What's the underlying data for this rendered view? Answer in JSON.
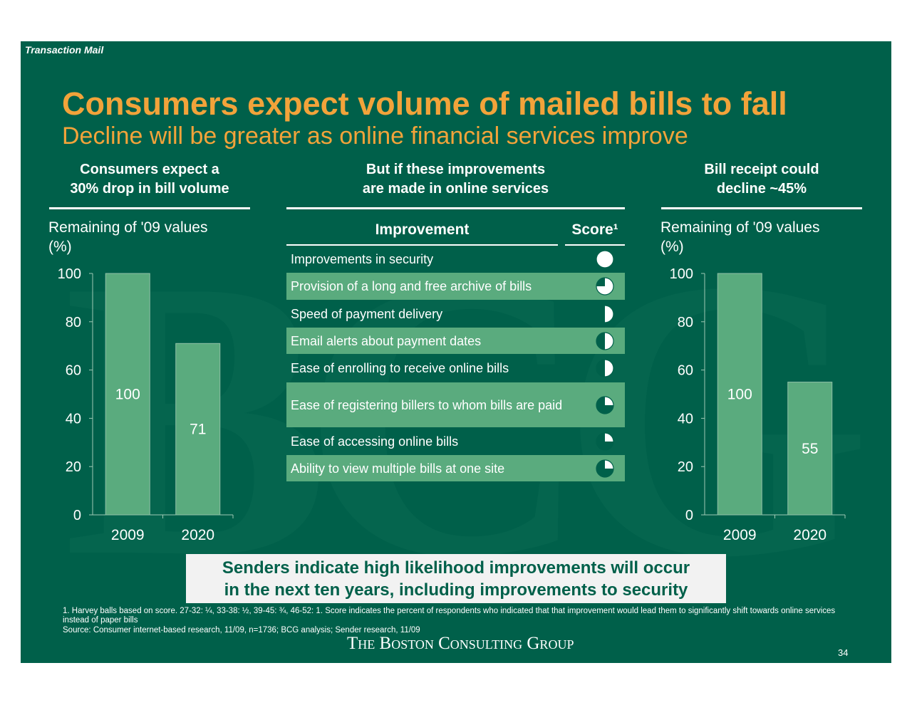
{
  "header": {
    "section_tag": "Transaction Mail",
    "title": "Consumers expect volume of mailed bills to fall",
    "subtitle": "Decline will be greater as online financial services improve"
  },
  "left_panel": {
    "heading_line1": "Consumers expect a",
    "heading_line2": "30% drop in bill volume",
    "axis_label_line1": "Remaining of '09 values",
    "axis_label_line2": "(%)"
  },
  "middle_panel": {
    "heading_line1": "But if these improvements",
    "heading_line2": "are made in online services",
    "col_improvement": "Improvement",
    "col_score": "Score¹",
    "rows": [
      {
        "label": "Improvements in security",
        "score": 1.0
      },
      {
        "label": "Provision of a long and free archive of bills",
        "score": 0.75
      },
      {
        "label": "Speed of payment delivery",
        "score": 0.5
      },
      {
        "label": "Email alerts about payment dates",
        "score": 0.5
      },
      {
        "label": "Ease of enrolling to receive online bills",
        "score": 0.5
      },
      {
        "label": "Ease of registering billers to whom bills are paid",
        "score": 0.25
      },
      {
        "label": "Ease of accessing online bills",
        "score": 0.25
      },
      {
        "label": "Ability to view multiple bills at one site",
        "score": 0.25
      }
    ]
  },
  "right_panel": {
    "heading_line1": "Bill receipt could",
    "heading_line2": "decline ~45%",
    "axis_label_line1": "Remaining of '09 values",
    "axis_label_line2": "(%)"
  },
  "chart_data": [
    {
      "type": "bar",
      "categories": [
        "2009",
        "2020"
      ],
      "values": [
        100,
        71
      ],
      "ylim": [
        0,
        100
      ],
      "yticks": [
        0,
        20,
        40,
        60,
        80,
        100
      ],
      "ylabel": "Remaining of '09 values (%)",
      "bar_color": "#5aab7e"
    },
    {
      "type": "bar",
      "categories": [
        "2009",
        "2020"
      ],
      "values": [
        100,
        55
      ],
      "ylim": [
        0,
        100
      ],
      "yticks": [
        0,
        20,
        40,
        60,
        80,
        100
      ],
      "ylabel": "Remaining of '09 values (%)",
      "bar_color": "#5aab7e"
    }
  ],
  "callout": {
    "line1": "Senders indicate high likelihood improvements will occur",
    "line2": "in the next ten years, including improvements to security"
  },
  "footnotes": {
    "note1": "1. Harvey balls based on score. 27-32: ¼, 33-38: ½, 39-45: ¾, 46-52: 1. Score indicates the percent of respondents who indicated that that improvement would lead them to significantly shift towards online services instead of paper bills",
    "source": "Source: Consumer internet-based research, 11/09, n=1736; BCG analysis; Sender research, 11/09"
  },
  "logo_text": "The Boston Consulting Group",
  "page_number": "34",
  "colors": {
    "background": "#00604a",
    "accent": "#f2a33a",
    "bar": "#5aab7e",
    "row_shade": "#5aab7e"
  }
}
